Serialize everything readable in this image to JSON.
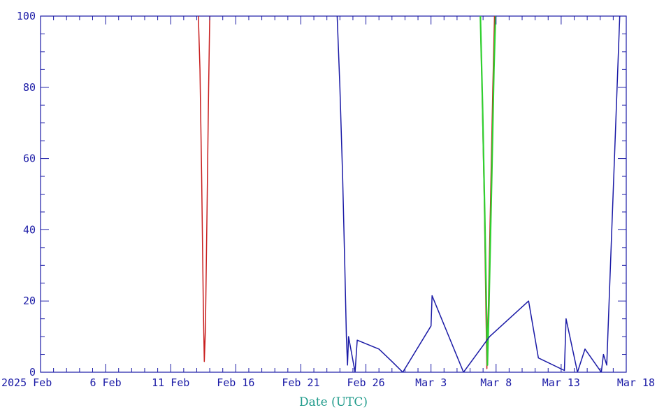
{
  "chart_data": {
    "type": "line",
    "xlabel": "Date (UTC)",
    "ylabel": "",
    "xlim": [
      "2025-02-01",
      "2025-03-18"
    ],
    "ylim": [
      0,
      100
    ],
    "x_ticks": [
      {
        "date": "2025-02-01",
        "label": "2025 Feb"
      },
      {
        "date": "2025-02-06",
        "label": "6 Feb"
      },
      {
        "date": "2025-02-11",
        "label": "11 Feb"
      },
      {
        "date": "2025-02-16",
        "label": "Feb 16"
      },
      {
        "date": "2025-02-21",
        "label": "Feb 21"
      },
      {
        "date": "2025-02-26",
        "label": "Feb 26"
      },
      {
        "date": "2025-03-03",
        "label": "Mar 3"
      },
      {
        "date": "2025-03-08",
        "label": "Mar 8"
      },
      {
        "date": "2025-03-13",
        "label": "Mar 13"
      },
      {
        "date": "2025-03-18",
        "label": "Mar 18"
      }
    ],
    "y_ticks": [
      0,
      20,
      40,
      60,
      80,
      100
    ],
    "grid": false,
    "colors": {
      "axis": "#1a1aa6",
      "title": "#1e9a8a"
    },
    "series": [
      {
        "color": "#c81e1e",
        "points": [
          [
            "2025-02-13T03:00",
            100
          ],
          [
            "2025-02-13T06:00",
            85
          ],
          [
            "2025-02-13T09:00",
            55
          ],
          [
            "2025-02-13T12:00",
            20
          ],
          [
            "2025-02-13T14:00",
            3
          ],
          [
            "2025-02-13T16:00",
            12
          ],
          [
            "2025-02-13T19:00",
            45
          ],
          [
            "2025-02-13T22:00",
            80
          ],
          [
            "2025-02-14T00:00",
            100
          ]
        ]
      },
      {
        "color": "#c81e1e",
        "points": [
          [
            "2025-03-06T19:00",
            100
          ],
          [
            "2025-03-06T22:00",
            80
          ],
          [
            "2025-03-07T02:00",
            50
          ],
          [
            "2025-03-07T05:00",
            20
          ],
          [
            "2025-03-07T07:00",
            1
          ],
          [
            "2025-03-07T10:00",
            20
          ],
          [
            "2025-03-07T14:00",
            50
          ],
          [
            "2025-03-07T18:00",
            80
          ],
          [
            "2025-03-07T21:00",
            100
          ]
        ]
      },
      {
        "color": "#2fd02f",
        "points": [
          [
            "2025-03-06T19:00",
            100
          ],
          [
            "2025-03-06T23:00",
            75
          ],
          [
            "2025-03-07T03:00",
            45
          ],
          [
            "2025-03-07T06:00",
            20
          ],
          [
            "2025-03-07T08:00",
            2
          ],
          [
            "2025-03-07T11:00",
            20
          ],
          [
            "2025-03-07T16:00",
            55
          ],
          [
            "2025-03-07T20:00",
            85
          ],
          [
            "2025-03-07T23:00",
            100
          ]
        ]
      },
      {
        "color": "#1a1aa6",
        "points": [
          [
            "2025-02-23T19:00",
            100
          ],
          [
            "2025-02-24T00:00",
            80
          ],
          [
            "2025-02-24T05:00",
            55
          ],
          [
            "2025-02-24T09:00",
            30
          ],
          [
            "2025-02-24T12:00",
            10
          ],
          [
            "2025-02-24T14:00",
            2
          ],
          [
            "2025-02-24T16:00",
            10
          ],
          [
            "2025-02-25T04:00",
            0
          ],
          [
            "2025-02-25T08:00",
            9
          ],
          [
            "2025-02-27T00:00",
            6.5
          ],
          [
            "2025-02-28T00:00",
            3
          ],
          [
            "2025-02-28T20:00",
            0
          ],
          [
            "2025-03-03T00:00",
            13
          ],
          [
            "2025-03-03T02:00",
            21.5
          ],
          [
            "2025-03-05T12:00",
            0
          ],
          [
            "2025-03-07T12:00",
            10
          ],
          [
            "2025-03-10T12:00",
            20
          ],
          [
            "2025-03-11T06:00",
            4
          ],
          [
            "2025-03-13T06:00",
            0.5
          ],
          [
            "2025-03-13T09:00",
            15
          ],
          [
            "2025-03-14T06:00",
            0
          ],
          [
            "2025-03-14T20:00",
            6.5
          ],
          [
            "2025-03-16T02:00",
            0
          ],
          [
            "2025-03-16T06:00",
            5
          ],
          [
            "2025-03-16T12:00",
            2
          ],
          [
            "2025-03-17T12:00",
            100
          ]
        ]
      }
    ]
  }
}
